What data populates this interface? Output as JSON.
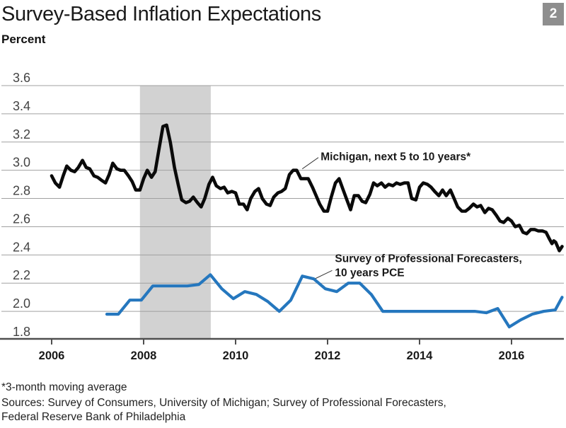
{
  "header": {
    "title": "Survey-Based Inflation Expectations",
    "figure_number": "2"
  },
  "footer": {
    "footnote": "*3-month moving average",
    "sources_line1": "Sources: Survey of Consumers, University of Michigan; Survey of Professional Forecasters,",
    "sources_line2": "Federal Reserve Bank of Philadelphia"
  },
  "chart_data": {
    "type": "line",
    "title": "Survey-Based Inflation Expectations",
    "ylabel": "Percent",
    "xlabel": "",
    "ylim": [
      1.8,
      3.6
    ],
    "xlim": [
      2005.85,
      2017.2
    ],
    "grid": "horizontal",
    "legend_position": "inline-annotations",
    "colors": {
      "michigan_line": "#0a0a0a",
      "spf_line": "#2577be",
      "recession_band": "#d2d2d2",
      "gridline": "#a0a0a0",
      "axis": "#4f4f4f",
      "badge": "#8e8e8e"
    },
    "yticks": [
      {
        "value": 3.6,
        "label": "3.6",
        "gridline": true
      },
      {
        "value": 3.4,
        "label": "3.4",
        "gridline": true
      },
      {
        "value": 3.2,
        "label": "3.2",
        "gridline": true
      },
      {
        "value": 3.0,
        "label": "3.0",
        "gridline": true
      },
      {
        "value": 2.8,
        "label": "2.8",
        "gridline": true
      },
      {
        "value": 2.6,
        "label": "2.6",
        "gridline": true
      },
      {
        "value": 2.4,
        "label": "2.4",
        "gridline": true
      },
      {
        "value": 2.2,
        "label": "2.2",
        "gridline": true
      },
      {
        "value": 2.0,
        "label": "2.0",
        "gridline": true
      },
      {
        "value": 1.8,
        "label": "1.8",
        "gridline": false
      }
    ],
    "xticks": [
      {
        "value": 2006,
        "label": "2006"
      },
      {
        "value": 2008,
        "label": "2008"
      },
      {
        "value": 2010,
        "label": "2010"
      },
      {
        "value": 2012,
        "label": "2012"
      },
      {
        "value": 2014,
        "label": "2014"
      },
      {
        "value": 2016,
        "label": "2016"
      }
    ],
    "recession_band": {
      "start": 2007.92,
      "end": 2009.46
    },
    "annotations": [
      {
        "id": "michigan-label",
        "lines": [
          "Michigan, next 5 to 10 years*"
        ],
        "x": 2011.85,
        "y": 3.07,
        "callout": {
          "from": [
            2011.8,
            3.09
          ],
          "to": [
            2011.45,
            3.01
          ]
        }
      },
      {
        "id": "spf-label",
        "lines": [
          "Survey of Professional Forecasters,",
          "10 years PCE"
        ],
        "x": 2012.16,
        "y": 2.35,
        "callout": {
          "from": [
            2012.1,
            2.29
          ],
          "to": [
            2011.72,
            2.23
          ]
        }
      }
    ],
    "series": [
      {
        "name": "Michigan, next 5 to 10 years*",
        "color_key": "michigan_line",
        "stroke_width": 4.6,
        "points": [
          [
            2006.0,
            2.96
          ],
          [
            2006.08,
            2.91
          ],
          [
            2006.17,
            2.88
          ],
          [
            2006.25,
            2.96
          ],
          [
            2006.33,
            3.03
          ],
          [
            2006.42,
            3.0
          ],
          [
            2006.5,
            2.99
          ],
          [
            2006.58,
            3.02
          ],
          [
            2006.67,
            3.07
          ],
          [
            2006.75,
            3.02
          ],
          [
            2006.83,
            3.01
          ],
          [
            2006.92,
            2.96
          ],
          [
            2007.0,
            2.95
          ],
          [
            2007.08,
            2.93
          ],
          [
            2007.17,
            2.91
          ],
          [
            2007.25,
            2.97
          ],
          [
            2007.33,
            3.05
          ],
          [
            2007.42,
            3.01
          ],
          [
            2007.5,
            3.0
          ],
          [
            2007.58,
            3.0
          ],
          [
            2007.67,
            2.96
          ],
          [
            2007.75,
            2.92
          ],
          [
            2007.83,
            2.86
          ],
          [
            2007.92,
            2.86
          ],
          [
            2008.0,
            2.94
          ],
          [
            2008.08,
            3.0
          ],
          [
            2008.17,
            2.95
          ],
          [
            2008.25,
            2.99
          ],
          [
            2008.33,
            3.14
          ],
          [
            2008.42,
            3.31
          ],
          [
            2008.5,
            3.32
          ],
          [
            2008.58,
            3.2
          ],
          [
            2008.67,
            3.02
          ],
          [
            2008.75,
            2.9
          ],
          [
            2008.83,
            2.79
          ],
          [
            2008.92,
            2.77
          ],
          [
            2009.0,
            2.78
          ],
          [
            2009.08,
            2.81
          ],
          [
            2009.17,
            2.77
          ],
          [
            2009.25,
            2.74
          ],
          [
            2009.33,
            2.8
          ],
          [
            2009.42,
            2.9
          ],
          [
            2009.5,
            2.95
          ],
          [
            2009.58,
            2.89
          ],
          [
            2009.67,
            2.87
          ],
          [
            2009.75,
            2.88
          ],
          [
            2009.83,
            2.84
          ],
          [
            2009.92,
            2.85
          ],
          [
            2010.0,
            2.84
          ],
          [
            2010.08,
            2.76
          ],
          [
            2010.17,
            2.76
          ],
          [
            2010.25,
            2.72
          ],
          [
            2010.33,
            2.8
          ],
          [
            2010.42,
            2.85
          ],
          [
            2010.5,
            2.87
          ],
          [
            2010.58,
            2.8
          ],
          [
            2010.67,
            2.76
          ],
          [
            2010.75,
            2.75
          ],
          [
            2010.83,
            2.81
          ],
          [
            2010.92,
            2.84
          ],
          [
            2011.0,
            2.85
          ],
          [
            2011.08,
            2.87
          ],
          [
            2011.17,
            2.97
          ],
          [
            2011.25,
            3.0
          ],
          [
            2011.33,
            3.0
          ],
          [
            2011.42,
            2.94
          ],
          [
            2011.5,
            2.94
          ],
          [
            2011.58,
            2.94
          ],
          [
            2011.67,
            2.88
          ],
          [
            2011.75,
            2.82
          ],
          [
            2011.83,
            2.76
          ],
          [
            2011.92,
            2.71
          ],
          [
            2012.0,
            2.71
          ],
          [
            2012.08,
            2.81
          ],
          [
            2012.17,
            2.91
          ],
          [
            2012.25,
            2.94
          ],
          [
            2012.33,
            2.87
          ],
          [
            2012.42,
            2.79
          ],
          [
            2012.5,
            2.72
          ],
          [
            2012.58,
            2.82
          ],
          [
            2012.67,
            2.82
          ],
          [
            2012.75,
            2.78
          ],
          [
            2012.83,
            2.77
          ],
          [
            2012.92,
            2.83
          ],
          [
            2013.0,
            2.91
          ],
          [
            2013.08,
            2.89
          ],
          [
            2013.17,
            2.91
          ],
          [
            2013.25,
            2.88
          ],
          [
            2013.33,
            2.9
          ],
          [
            2013.42,
            2.89
          ],
          [
            2013.5,
            2.91
          ],
          [
            2013.58,
            2.9
          ],
          [
            2013.67,
            2.91
          ],
          [
            2013.75,
            2.91
          ],
          [
            2013.83,
            2.8
          ],
          [
            2013.92,
            2.79
          ],
          [
            2014.0,
            2.88
          ],
          [
            2014.08,
            2.91
          ],
          [
            2014.17,
            2.9
          ],
          [
            2014.25,
            2.88
          ],
          [
            2014.33,
            2.85
          ],
          [
            2014.42,
            2.82
          ],
          [
            2014.5,
            2.86
          ],
          [
            2014.58,
            2.82
          ],
          [
            2014.67,
            2.86
          ],
          [
            2014.75,
            2.8
          ],
          [
            2014.83,
            2.74
          ],
          [
            2014.92,
            2.71
          ],
          [
            2015.0,
            2.71
          ],
          [
            2015.08,
            2.73
          ],
          [
            2015.17,
            2.76
          ],
          [
            2015.25,
            2.74
          ],
          [
            2015.33,
            2.75
          ],
          [
            2015.42,
            2.7
          ],
          [
            2015.5,
            2.73
          ],
          [
            2015.58,
            2.72
          ],
          [
            2015.67,
            2.68
          ],
          [
            2015.75,
            2.64
          ],
          [
            2015.83,
            2.63
          ],
          [
            2015.92,
            2.66
          ],
          [
            2016.0,
            2.64
          ],
          [
            2016.08,
            2.6
          ],
          [
            2016.17,
            2.61
          ],
          [
            2016.25,
            2.56
          ],
          [
            2016.33,
            2.55
          ],
          [
            2016.42,
            2.58
          ],
          [
            2016.5,
            2.58
          ],
          [
            2016.58,
            2.57
          ],
          [
            2016.67,
            2.57
          ],
          [
            2016.75,
            2.56
          ],
          [
            2016.83,
            2.51
          ],
          [
            2016.88,
            2.48
          ],
          [
            2016.92,
            2.5
          ],
          [
            2016.96,
            2.49
          ],
          [
            2017.04,
            2.43
          ],
          [
            2017.1,
            2.46
          ]
        ]
      },
      {
        "name": "Survey of Professional Forecasters, 10 years PCE",
        "color_key": "spf_line",
        "stroke_width": 4.2,
        "points": [
          [
            2007.2,
            1.98
          ],
          [
            2007.45,
            1.98
          ],
          [
            2007.7,
            2.08
          ],
          [
            2007.95,
            2.08
          ],
          [
            2008.2,
            2.18
          ],
          [
            2008.45,
            2.18
          ],
          [
            2008.7,
            2.18
          ],
          [
            2008.95,
            2.18
          ],
          [
            2009.2,
            2.19
          ],
          [
            2009.45,
            2.26
          ],
          [
            2009.7,
            2.16
          ],
          [
            2009.95,
            2.09
          ],
          [
            2010.2,
            2.14
          ],
          [
            2010.45,
            2.12
          ],
          [
            2010.7,
            2.07
          ],
          [
            2010.95,
            2.0
          ],
          [
            2011.2,
            2.08
          ],
          [
            2011.45,
            2.25
          ],
          [
            2011.7,
            2.23
          ],
          [
            2011.95,
            2.16
          ],
          [
            2012.2,
            2.14
          ],
          [
            2012.45,
            2.2
          ],
          [
            2012.7,
            2.2
          ],
          [
            2012.95,
            2.12
          ],
          [
            2013.2,
            2.0
          ],
          [
            2013.45,
            2.0
          ],
          [
            2013.7,
            2.0
          ],
          [
            2013.95,
            2.0
          ],
          [
            2014.2,
            2.0
          ],
          [
            2014.45,
            2.0
          ],
          [
            2014.7,
            2.0
          ],
          [
            2014.95,
            2.0
          ],
          [
            2015.2,
            2.0
          ],
          [
            2015.45,
            1.99
          ],
          [
            2015.7,
            2.02
          ],
          [
            2015.95,
            1.89
          ],
          [
            2016.2,
            1.94
          ],
          [
            2016.45,
            1.98
          ],
          [
            2016.7,
            2.0
          ],
          [
            2016.95,
            2.01
          ],
          [
            2017.1,
            2.1
          ]
        ]
      }
    ]
  }
}
